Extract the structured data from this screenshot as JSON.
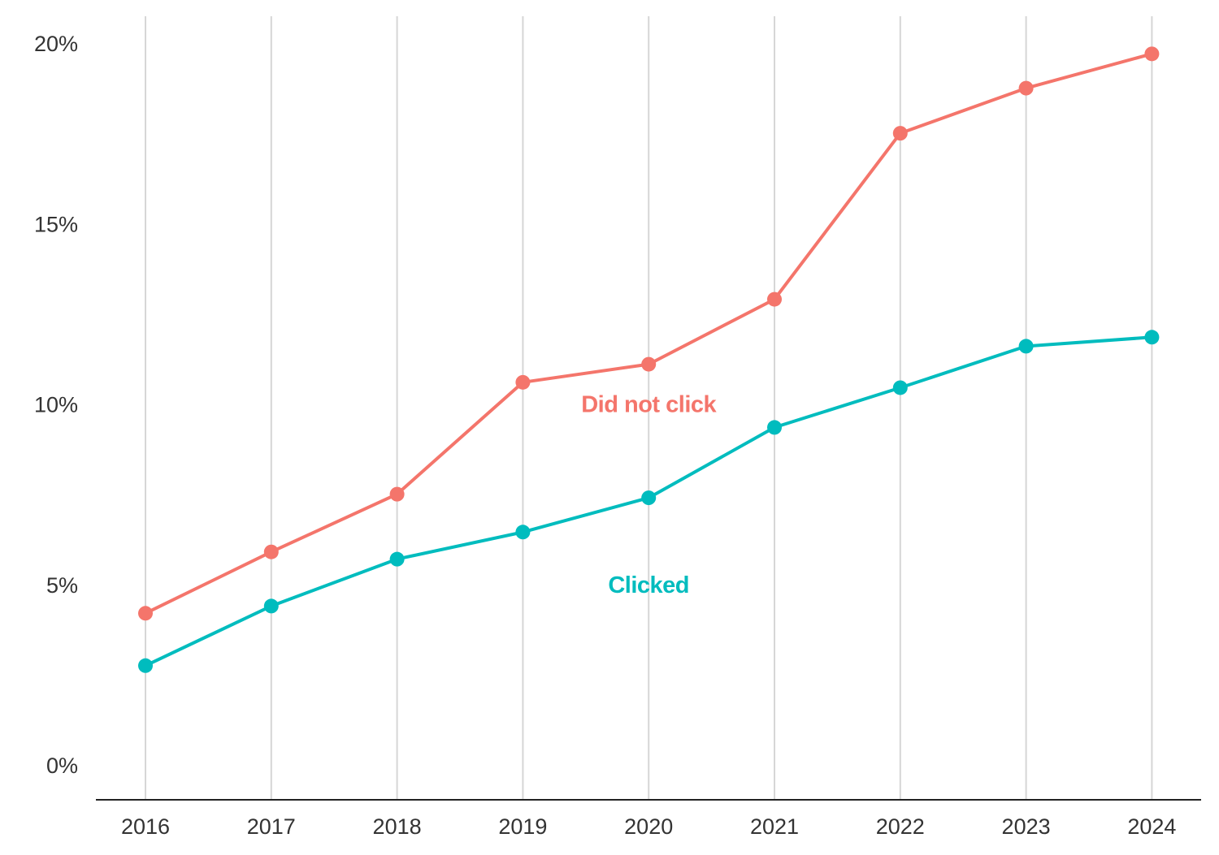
{
  "chart_data": {
    "type": "line",
    "title": "",
    "xlabel": "",
    "ylabel": "",
    "x": [
      "2016",
      "2017",
      "2018",
      "2019",
      "2020",
      "2021",
      "2022",
      "2023",
      "2024"
    ],
    "y_ticks": [
      {
        "value": 0,
        "label": "0%"
      },
      {
        "value": 5,
        "label": "5%"
      },
      {
        "value": 10,
        "label": "10%"
      },
      {
        "value": 15,
        "label": "15%"
      },
      {
        "value": 20,
        "label": "20%"
      }
    ],
    "ylim": [
      0,
      20
    ],
    "grid": "vertical",
    "legend": "inline labels",
    "series": [
      {
        "name": "Did not click",
        "color": "#f4756b",
        "values": [
          4.2,
          5.9,
          7.5,
          10.6,
          11.1,
          12.9,
          17.5,
          18.75,
          19.7
        ],
        "label_at": {
          "x": "2020",
          "y": 10
        }
      },
      {
        "name": "Clicked",
        "color": "#00bcbe",
        "values": [
          2.75,
          4.4,
          5.7,
          6.45,
          7.4,
          9.35,
          10.45,
          11.6,
          11.85
        ],
        "label_at": {
          "x": "2020",
          "y": 5
        }
      }
    ]
  }
}
